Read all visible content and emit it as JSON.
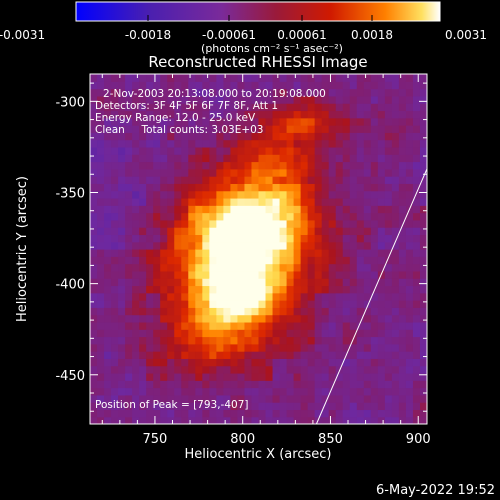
{
  "chart_data": {
    "type": "heatmap",
    "title": "Reconstructed RHESSI Image",
    "xlabel": "Heliocentric X (arcsec)",
    "ylabel": "Heliocentric Y (arcsec)",
    "xlim": [
      713,
      905
    ],
    "ylim": [
      -477,
      -285
    ],
    "x_ticks": [
      750,
      800,
      850,
      900
    ],
    "y_ticks": [
      -300,
      -350,
      -400,
      -450
    ],
    "colorbar": {
      "unit_label": "(photons cm⁻² s⁻¹ asec⁻²)",
      "range": [
        -0.0031,
        0.0031
      ],
      "ticks": [
        "-0.0031",
        "-0.0018",
        "-0.00061",
        "0.00061",
        "0.0018",
        "0.0031"
      ],
      "colors": [
        "#0000ff",
        "#5a1aa8",
        "#7a2a9a",
        "#9a2040",
        "#d01a00",
        "#ff7a00",
        "#ffe060",
        "#ffffff"
      ]
    },
    "annotations": [
      "2-Nov-2003 20:13:08.000 to 20:19:08.000",
      "Detectors: 3F 4F 5F 6F 7F 8F, Att 1",
      "Energy Range: 12.0 - 25.0 keV",
      "Clean     Total counts: 3.03E+03"
    ],
    "peak_label": "Position of Peak = [793,-407]",
    "peak": [
      793,
      -407
    ],
    "limb_line": [
      [
        842,
        -477
      ],
      [
        905,
        -337
      ]
    ],
    "sources": [
      {
        "x": 796,
        "y": -388,
        "sx": 28,
        "sy": 30,
        "amp": 1.0
      },
      {
        "x": 796,
        "y": -408,
        "sx": 12,
        "sy": 12,
        "amp": 0.35
      },
      {
        "x": 812,
        "y": -365,
        "sx": 22,
        "sy": 16,
        "amp": 0.45
      },
      {
        "x": 825,
        "y": -332,
        "sx": 16,
        "sy": 16,
        "amp": 0.35
      },
      {
        "x": 840,
        "y": -310,
        "sx": 22,
        "sy": 8,
        "amp": 0.28
      },
      {
        "x": 775,
        "y": -430,
        "sx": 18,
        "sy": 14,
        "amp": 0.25
      }
    ]
  },
  "footer": {
    "timestamp": "6-May-2022 19:52"
  }
}
